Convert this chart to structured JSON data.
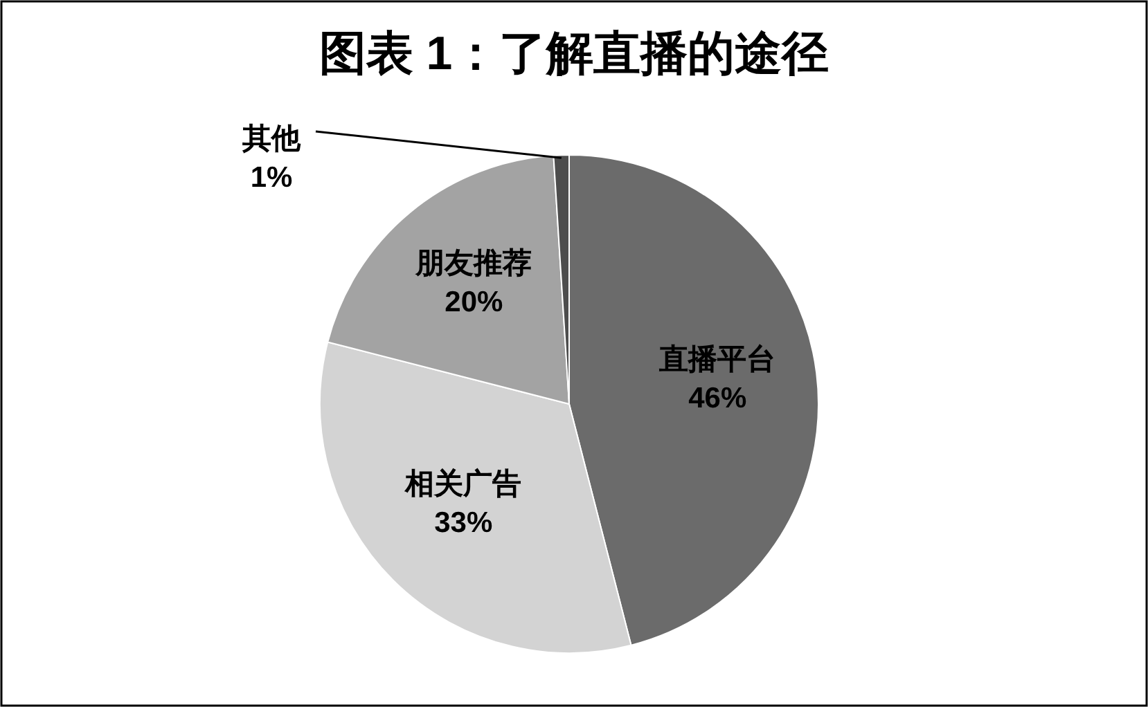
{
  "chart_data": {
    "type": "pie",
    "title": "图表 1：了解直播的途径",
    "categories": [
      "直播平台",
      "相关广告",
      "朋友推荐",
      "其他"
    ],
    "values": [
      46,
      33,
      20,
      1
    ],
    "value_labels": [
      "46%",
      "33%",
      "20%",
      "1%"
    ],
    "colors": [
      "#6b6b6b",
      "#d3d3d3",
      "#a3a3a3",
      "#4d4d4d"
    ]
  }
}
